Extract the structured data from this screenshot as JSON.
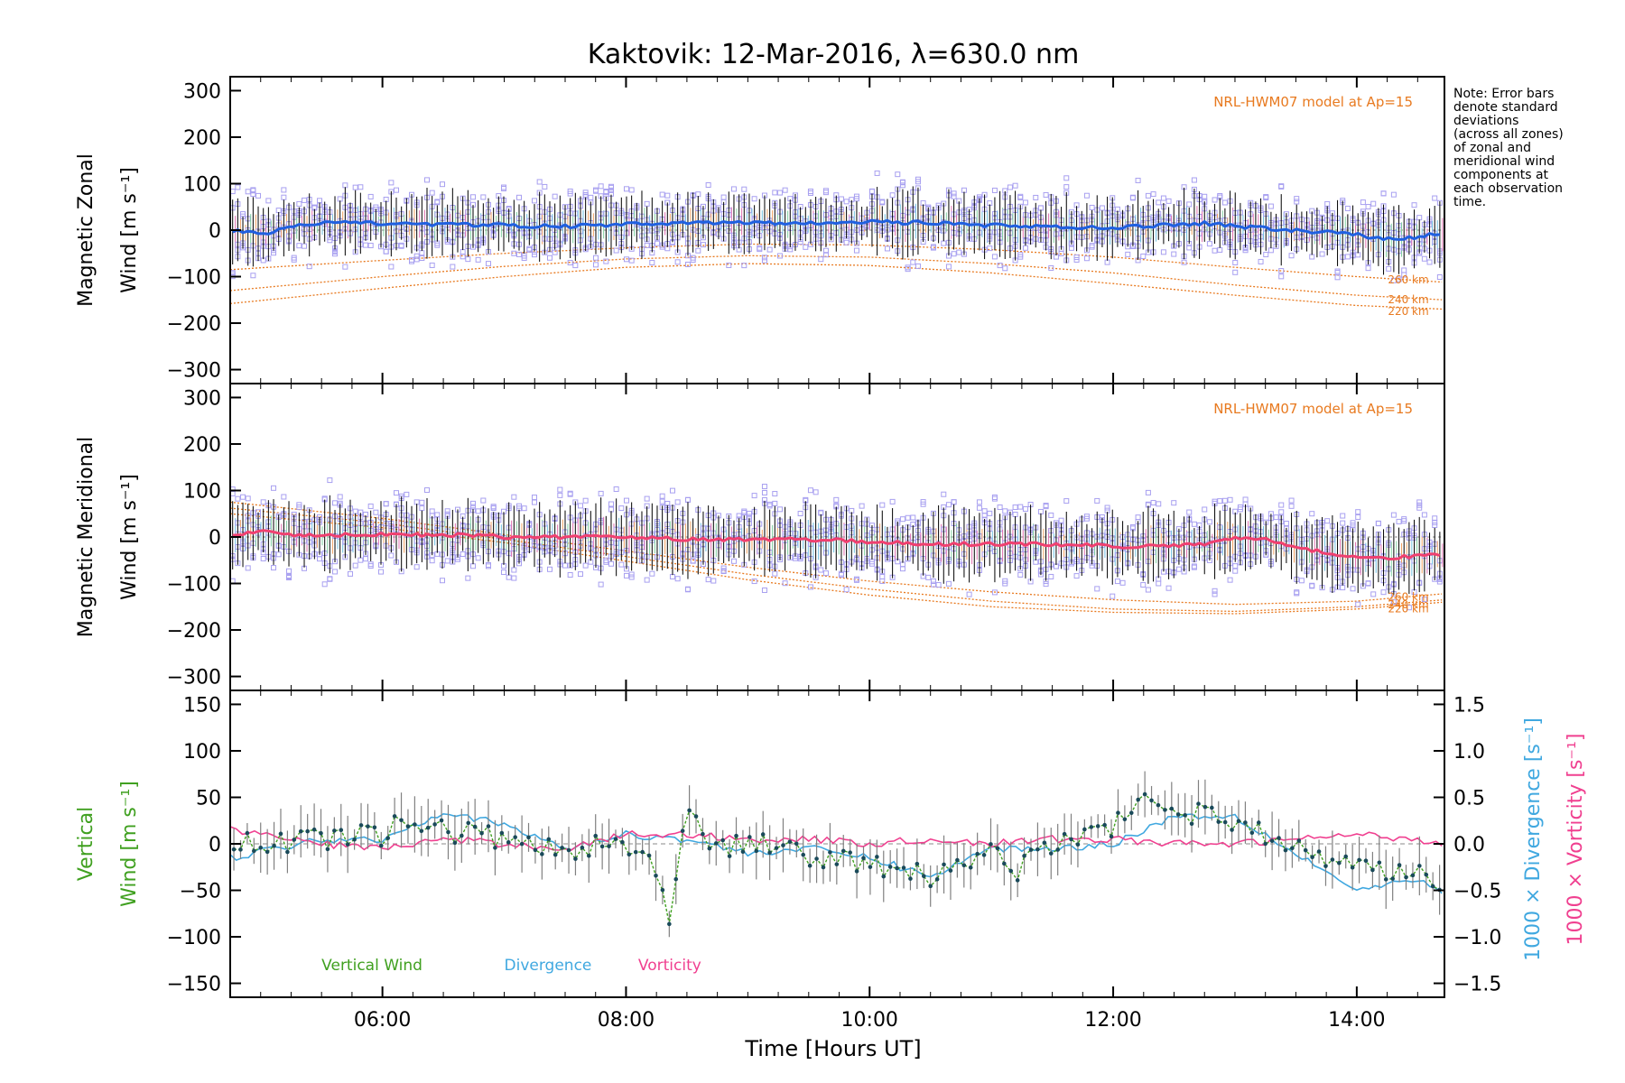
{
  "title": "Kaktovik: 12-Mar-2016, λ=630.0 nm",
  "note": [
    "Note: Error bars",
    "denote standard",
    "deviations",
    "(across all zones)",
    "of zonal and",
    "meridional wind",
    "components at",
    "each observation",
    "time."
  ],
  "x_label": "Time [Hours UT]",
  "x_ticks": [
    {
      "value": 6,
      "label": "06:00"
    },
    {
      "value": 8,
      "label": "08:00"
    },
    {
      "value": 10,
      "label": "10:00"
    },
    {
      "value": 12,
      "label": "12:00"
    },
    {
      "value": 14,
      "label": "14:00"
    }
  ],
  "colors": {
    "zonal": "#2060e0",
    "meridional": "#f04070",
    "model": "#e87a20",
    "samples": "#a8a0f0",
    "errorbar": "#000000",
    "vertical": "#40a020",
    "divergence": "#40a8e0",
    "vorticity": "#f04090",
    "points": "#1a4a5a"
  },
  "chart_data": [
    {
      "type": "line",
      "id": "zonal",
      "ylabel": [
        "Magnetic Zonal",
        "Wind [m s⁻¹]"
      ],
      "xlim": [
        4.75,
        14.72
      ],
      "ylim": [
        -330,
        330
      ],
      "y_ticks": [
        300,
        200,
        100,
        0,
        -100,
        -200,
        -300
      ],
      "model_label": "NRL-HWM07 model at Ap=15",
      "model_altitudes": [
        "260 km",
        "240 km",
        "220 km"
      ],
      "model_curves": [
        {
          "name": "260 km",
          "x": [
            4.75,
            6,
            7,
            8,
            9,
            10,
            11,
            12,
            13,
            14,
            14.72
          ],
          "y": [
            -85,
            -65,
            -50,
            -38,
            -30,
            -32,
            -42,
            -58,
            -80,
            -100,
            -112
          ]
        },
        {
          "name": "240 km",
          "x": [
            4.75,
            6,
            7,
            8,
            9,
            10,
            11,
            12,
            13,
            14,
            14.72
          ],
          "y": [
            -130,
            -100,
            -78,
            -62,
            -55,
            -58,
            -72,
            -92,
            -118,
            -140,
            -150
          ]
        },
        {
          "name": "220 km",
          "x": [
            4.75,
            6,
            7,
            8,
            9,
            10,
            11,
            12,
            13,
            14,
            14.72
          ],
          "y": [
            -158,
            -125,
            -100,
            -80,
            -72,
            -76,
            -92,
            -115,
            -140,
            -162,
            -170
          ]
        }
      ],
      "mean": {
        "x": [
          4.75,
          5,
          5.25,
          5.5,
          6,
          6.5,
          7,
          7.5,
          8,
          8.5,
          9,
          9.5,
          10,
          10.5,
          11,
          11.5,
          12,
          12.5,
          12.75,
          13,
          13.5,
          14,
          14.25,
          14.5,
          14.72
        ],
        "y": [
          0,
          -10,
          10,
          15,
          15,
          12,
          10,
          8,
          12,
          15,
          15,
          15,
          18,
          15,
          10,
          8,
          5,
          12,
          15,
          8,
          0,
          -10,
          -20,
          -15,
          -5
        ]
      },
      "spread": 55
    },
    {
      "type": "line",
      "id": "meridional",
      "ylabel": [
        "Magnetic Meridional",
        "Wind [m s⁻¹]"
      ],
      "xlim": [
        4.75,
        14.72
      ],
      "ylim": [
        -330,
        330
      ],
      "y_ticks": [
        300,
        200,
        100,
        0,
        -100,
        -200,
        -300
      ],
      "model_label": "NRL-HWM07 model at Ap=15",
      "model_altitudes": [
        "260 km",
        "240 km",
        "220 km"
      ],
      "model_curves": [
        {
          "name": "260 km",
          "x": [
            4.75,
            6,
            7,
            8,
            9,
            10,
            11,
            12,
            13,
            14,
            14.72
          ],
          "y": [
            75,
            40,
            5,
            -30,
            -65,
            -95,
            -118,
            -135,
            -145,
            -138,
            -122
          ]
        },
        {
          "name": "240 km",
          "x": [
            4.75,
            6,
            7,
            8,
            9,
            10,
            11,
            12,
            13,
            14,
            14.72
          ],
          "y": [
            62,
            30,
            -5,
            -42,
            -80,
            -112,
            -138,
            -155,
            -160,
            -150,
            -135
          ]
        },
        {
          "name": "220 km",
          "x": [
            4.75,
            6,
            7,
            8,
            9,
            10,
            11,
            12,
            13,
            14,
            14.72
          ],
          "y": [
            50,
            20,
            -12,
            -52,
            -92,
            -125,
            -150,
            -162,
            -165,
            -155,
            -140
          ]
        }
      ],
      "mean": {
        "x": [
          4.75,
          5,
          5.25,
          5.5,
          6,
          6.5,
          7,
          7.5,
          8,
          8.5,
          9,
          9.5,
          10,
          10.5,
          11,
          11.5,
          12,
          12.5,
          12.75,
          13,
          13.25,
          13.5,
          13.75,
          14,
          14.25,
          14.5,
          14.72
        ],
        "y": [
          5,
          12,
          5,
          5,
          5,
          5,
          0,
          0,
          0,
          -5,
          -5,
          -5,
          -10,
          -15,
          -15,
          -15,
          -20,
          -20,
          -15,
          0,
          -5,
          -20,
          -35,
          -45,
          -45,
          -40,
          -35
        ]
      },
      "spread": 60
    },
    {
      "type": "line",
      "id": "vertical",
      "ylabel_vertical": [
        "Vertical",
        "Wind [m s⁻¹]"
      ],
      "ylabel_divergence": "1000 × Divergence [s⁻¹]",
      "ylabel_vorticity": "1000 × Vorticity [s⁻¹]",
      "xlim": [
        4.75,
        14.72
      ],
      "ylim": [
        -165,
        165
      ],
      "y_ticks": [
        150,
        100,
        50,
        0,
        -50,
        -100,
        -150
      ],
      "y2lim": [
        -1.65,
        1.65
      ],
      "y2_ticks": [
        1.5,
        1.0,
        0.5,
        0.0,
        -0.5,
        -1.0,
        -1.5
      ],
      "legend": [
        {
          "label": "Vertical Wind",
          "color": "#40a020",
          "x": 5.5
        },
        {
          "label": "Divergence",
          "color": "#40a8e0",
          "x": 7.0
        },
        {
          "label": "Vorticity",
          "color": "#f04090",
          "x": 8.1
        }
      ],
      "vertical_keypoints": {
        "x": [
          4.75,
          5.5,
          6.0,
          6.2,
          6.5,
          7.0,
          7.5,
          8.0,
          8.2,
          8.35,
          8.5,
          8.7,
          9.0,
          9.5,
          10.0,
          10.5,
          11.0,
          11.2,
          11.5,
          12.0,
          12.2,
          12.3,
          12.5,
          12.8,
          13.0,
          13.5,
          14.0,
          14.3,
          14.5,
          14.72
        ],
        "y": [
          0,
          5,
          10,
          28,
          15,
          5,
          -5,
          0,
          -20,
          -80,
          40,
          -10,
          5,
          -15,
          -20,
          -35,
          -5,
          -30,
          0,
          20,
          40,
          60,
          35,
          30,
          20,
          0,
          -25,
          -30,
          -35,
          -40
        ]
      },
      "divergence": {
        "x": [
          4.75,
          5.5,
          6.0,
          6.5,
          7.0,
          7.5,
          8.0,
          8.5,
          9.0,
          9.5,
          10.0,
          10.5,
          11.0,
          11.5,
          12.0,
          12.5,
          13.0,
          13.5,
          14.0,
          14.5,
          14.72
        ],
        "y": [
          -0.15,
          0.05,
          0.05,
          0.35,
          0.2,
          -0.05,
          0.1,
          0.05,
          -0.1,
          -0.05,
          -0.15,
          -0.35,
          -0.05,
          -0.05,
          0.0,
          0.3,
          0.3,
          -0.1,
          -0.5,
          -0.4,
          -0.5
        ]
      },
      "vorticity": {
        "x": [
          4.75,
          5.5,
          6.0,
          6.5,
          7.0,
          7.5,
          8.0,
          8.5,
          9.0,
          9.5,
          10.0,
          10.5,
          11.0,
          11.5,
          12.0,
          12.5,
          13.0,
          13.5,
          14.0,
          14.5,
          14.72
        ],
        "y": [
          0.15,
          0.0,
          -0.05,
          0.05,
          0.0,
          -0.05,
          0.1,
          0.1,
          0.05,
          0.05,
          0.0,
          0.05,
          0.0,
          0.05,
          0.05,
          0.0,
          0.0,
          0.05,
          0.1,
          0.05,
          0.0
        ]
      }
    }
  ]
}
